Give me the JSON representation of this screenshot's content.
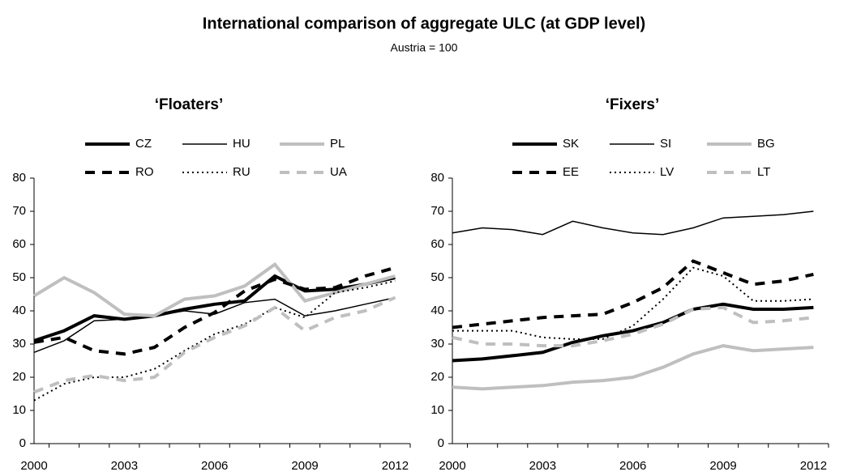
{
  "title": "International comparison of aggregate ULC (at GDP level)",
  "subtitle": "Austria = 100",
  "chart_data": [
    {
      "type": "line",
      "title": "‘Floaters’",
      "x": [
        2000,
        2001,
        2002,
        2003,
        2004,
        2005,
        2006,
        2007,
        2008,
        2009,
        2010,
        2011,
        2012
      ],
      "xlim": [
        2000,
        2012.5
      ],
      "xticks": [
        2000,
        2003,
        2006,
        2009,
        2012
      ],
      "ylim": [
        0,
        80
      ],
      "yticks": [
        0,
        10,
        20,
        30,
        40,
        50,
        60,
        70,
        80
      ],
      "series": [
        {
          "name": "CZ",
          "color": "#000000",
          "width": 4,
          "dash": "solid",
          "values": [
            31,
            34,
            38.5,
            37.5,
            38.5,
            40.5,
            42,
            43,
            50.5,
            46,
            46.5,
            48,
            50
          ]
        },
        {
          "name": "HU",
          "color": "#000000",
          "width": 1.5,
          "dash": "solid",
          "values": [
            27.5,
            31,
            37,
            37.5,
            38.5,
            40,
            39,
            42.5,
            43.5,
            38.5,
            40,
            42,
            44
          ]
        },
        {
          "name": "PL",
          "color": "#bfbfbf",
          "width": 4,
          "dash": "solid",
          "values": [
            44.5,
            50,
            45.5,
            39,
            38.5,
            43.5,
            44.5,
            47.5,
            54,
            43,
            45.5,
            48,
            50.5
          ]
        },
        {
          "name": "RO",
          "color": "#000000",
          "width": 4,
          "dash": "dashed",
          "values": [
            30.5,
            32,
            28,
            27,
            29,
            35,
            39.5,
            46,
            49.5,
            46.5,
            47,
            50.5,
            53
          ]
        },
        {
          "name": "RU",
          "color": "#000000",
          "width": 2,
          "dash": "dotted",
          "values": [
            13,
            18,
            20,
            20,
            22.5,
            28,
            33,
            36,
            41,
            38,
            45.5,
            47,
            49
          ]
        },
        {
          "name": "UA",
          "color": "#bfbfbf",
          "width": 4,
          "dash": "dashed",
          "values": [
            15.5,
            19,
            20.5,
            19,
            20,
            27.5,
            32,
            35.5,
            41,
            34,
            38,
            40,
            44
          ]
        }
      ]
    },
    {
      "type": "line",
      "title": "‘Fixers’",
      "x": [
        2000,
        2001,
        2002,
        2003,
        2004,
        2005,
        2006,
        2007,
        2008,
        2009,
        2010,
        2011,
        2012
      ],
      "xlim": [
        2000,
        2012.5
      ],
      "xticks": [
        2000,
        2003,
        2006,
        2009,
        2012
      ],
      "ylim": [
        0,
        80
      ],
      "yticks": [
        0,
        10,
        20,
        30,
        40,
        50,
        60,
        70,
        80
      ],
      "series": [
        {
          "name": "SK",
          "color": "#000000",
          "width": 4,
          "dash": "solid",
          "values": [
            25,
            25.5,
            26.5,
            27.5,
            30.5,
            32.5,
            34,
            36.5,
            40.5,
            42,
            40.5,
            40.5,
            41
          ]
        },
        {
          "name": "SI",
          "color": "#000000",
          "width": 1.5,
          "dash": "solid",
          "values": [
            63.5,
            65,
            64.5,
            63,
            67,
            65,
            63.5,
            63,
            65,
            68,
            68.5,
            69,
            70
          ]
        },
        {
          "name": "BG",
          "color": "#bfbfbf",
          "width": 4,
          "dash": "solid",
          "values": [
            17,
            16.5,
            17,
            17.5,
            18.5,
            19,
            20,
            23,
            27,
            29.5,
            28,
            28.5,
            29
          ]
        },
        {
          "name": "EE",
          "color": "#000000",
          "width": 4,
          "dash": "dashed",
          "values": [
            35,
            36,
            37,
            38,
            38.5,
            39,
            42.5,
            47,
            55,
            51.5,
            48,
            49,
            51
          ]
        },
        {
          "name": "LV",
          "color": "#000000",
          "width": 2,
          "dash": "dotted",
          "values": [
            34,
            34,
            34,
            32,
            31.5,
            31.5,
            35.5,
            43.5,
            53,
            50.5,
            43,
            43,
            43.5
          ]
        },
        {
          "name": "LT",
          "color": "#bfbfbf",
          "width": 4,
          "dash": "dashed",
          "values": [
            32,
            30,
            30,
            29.5,
            29.5,
            31,
            33,
            36,
            40.5,
            41,
            36.5,
            37,
            38
          ]
        }
      ]
    }
  ]
}
